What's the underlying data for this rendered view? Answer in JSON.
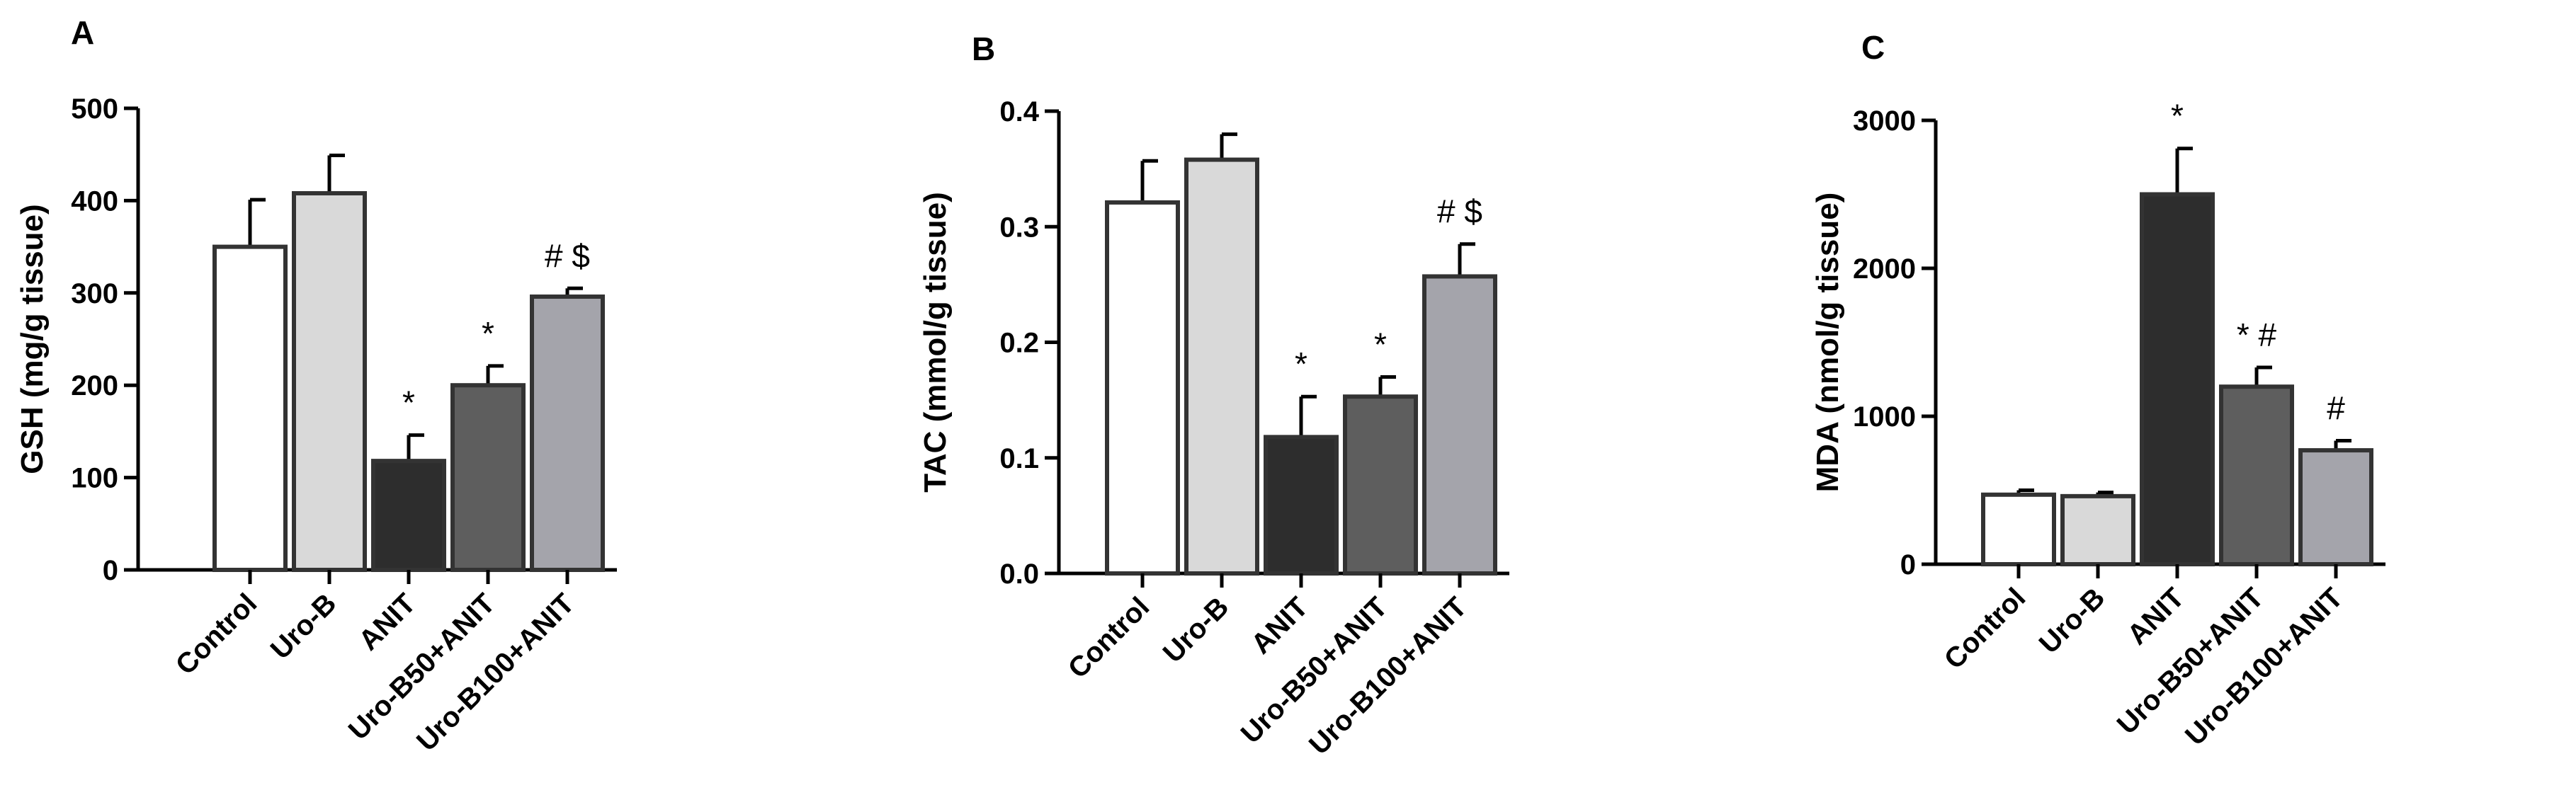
{
  "chart_data": [
    {
      "type": "bar",
      "panel_label": "A",
      "ylabel": "GSH (mg/g tissue)",
      "ylim": [
        0,
        500
      ],
      "yticks": [
        0,
        100,
        200,
        300,
        400,
        500
      ],
      "ytick_labels": [
        "0",
        "100",
        "200",
        "300",
        "400",
        "500"
      ],
      "categories": [
        "Control",
        "Uro-B",
        "ANIT",
        "Uro-B50+ANIT",
        "Uro-B100+ANIT"
      ],
      "values": [
        350,
        408,
        118,
        200,
        296
      ],
      "error": [
        51,
        41,
        28,
        21,
        9
      ],
      "annotations": [
        "",
        "",
        "*",
        "*",
        "# $"
      ],
      "colors": [
        "#ffffff",
        "#d9d9d9",
        "#2d2d2d",
        "#5e5e5e",
        "#a4a4ab"
      ]
    },
    {
      "type": "bar",
      "panel_label": "B",
      "ylabel": "TAC (mmol/g tissue)",
      "ylim": [
        0,
        0.4
      ],
      "yticks": [
        0,
        0.1,
        0.2,
        0.3,
        0.4
      ],
      "ytick_labels": [
        "0.0",
        "0.1",
        "0.2",
        "0.3",
        "0.4"
      ],
      "categories": [
        "Control",
        "Uro-B",
        "ANIT",
        "Uro-B50+ANIT",
        "Uro-B100+ANIT"
      ],
      "values": [
        0.321,
        0.358,
        0.118,
        0.153,
        0.257
      ],
      "error": [
        0.036,
        0.022,
        0.035,
        0.017,
        0.028
      ],
      "annotations": [
        "",
        "",
        "*",
        "*",
        "# $"
      ],
      "colors": [
        "#ffffff",
        "#d9d9d9",
        "#2d2d2d",
        "#5e5e5e",
        "#a4a4ab"
      ]
    },
    {
      "type": "bar",
      "panel_label": "C",
      "ylabel": "MDA (nmol/g tissue)",
      "ylim": [
        0,
        3000
      ],
      "yticks": [
        0,
        1000,
        2000,
        3000
      ],
      "ytick_labels": [
        "0",
        "1000",
        "2000",
        "3000"
      ],
      "categories": [
        "Control",
        "Uro-B",
        "ANIT",
        "Uro-B50+ANIT",
        "Uro-B100+ANIT"
      ],
      "values": [
        470,
        460,
        2500,
        1200,
        770
      ],
      "error": [
        30,
        25,
        310,
        130,
        65
      ],
      "annotations": [
        "",
        "",
        "*",
        "* #",
        "#"
      ],
      "colors": [
        "#ffffff",
        "#d9d9d9",
        "#2d2d2d",
        "#5e5e5e",
        "#a4a4ab"
      ]
    }
  ]
}
